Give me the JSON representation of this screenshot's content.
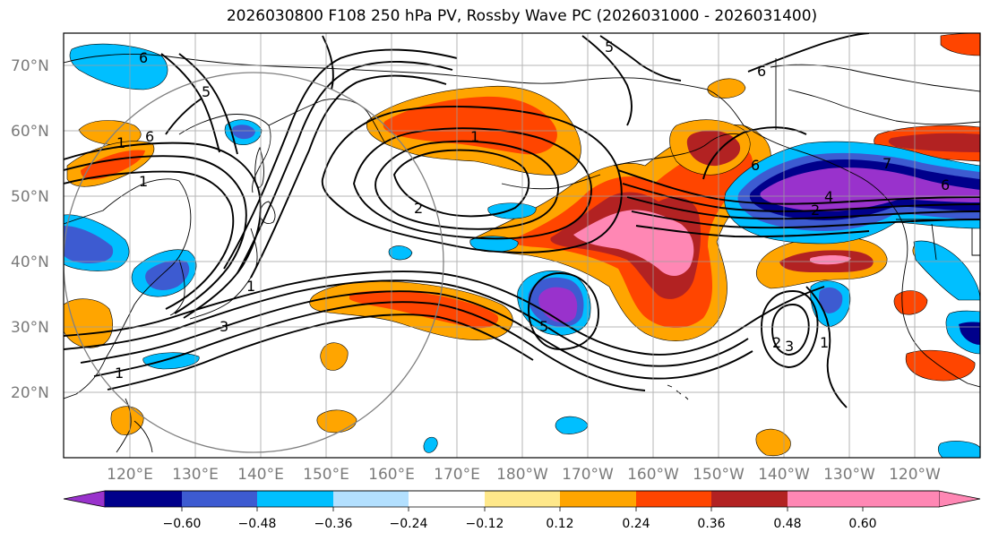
{
  "title": "2026030800 F108 250 hPa PV, Rossby Wave PC (2026031000 - 2026031400)",
  "map": {
    "lat_labels": [
      "70°N",
      "60°N",
      "50°N",
      "40°N",
      "30°N",
      "20°N"
    ],
    "lon_labels": [
      "120°E",
      "130°E",
      "140°E",
      "150°E",
      "160°E",
      "170°E",
      "180°W",
      "170°W",
      "160°W",
      "150°W",
      "140°W",
      "130°W",
      "120°W"
    ],
    "contour_labels": [
      "6",
      "5",
      "1",
      "6",
      "1",
      "1",
      "2",
      "5",
      "6",
      "6",
      "7",
      "4",
      "2",
      "6",
      "1",
      "3",
      "5",
      "3",
      "2",
      "1",
      "1"
    ]
  },
  "colorbar": {
    "colors": [
      "#9932cc",
      "#00008b",
      "#3d5bd1",
      "#00bfff",
      "#b3e0ff",
      "#ffffff",
      "#ffe88a",
      "#ffa500",
      "#ff4500",
      "#b22222",
      "#ff87b4"
    ],
    "tick_labels": [
      "−0.60",
      "−0.48",
      "−0.36",
      "−0.24",
      "−0.12",
      "0.12",
      "0.24",
      "0.36",
      "0.48",
      "0.60"
    ]
  }
}
